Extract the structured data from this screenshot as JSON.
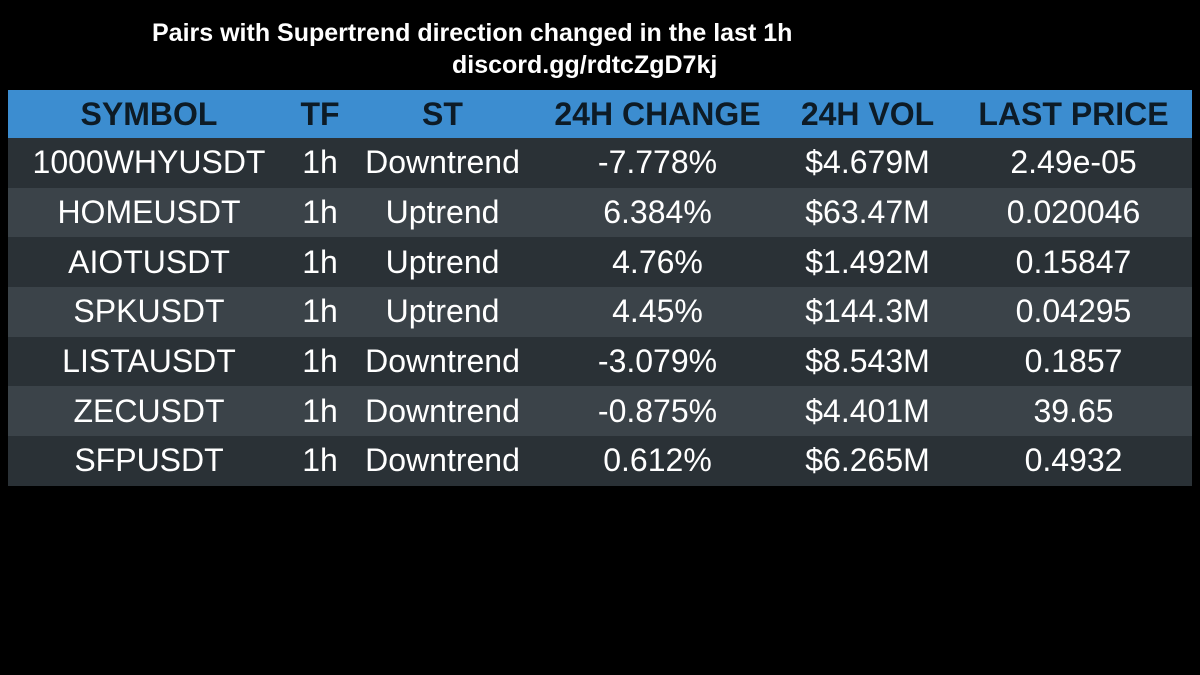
{
  "header": {
    "title": "Pairs with Supertrend direction changed in the last 1h",
    "subtitle": "discord.gg/rdtcZgD7kj"
  },
  "colors": {
    "background": "#000000",
    "header_bg": "#3c8dd0",
    "header_text": "#0d1b26",
    "row_dark": "#2a3136",
    "row_light": "#3b4349",
    "text": "#ffffff"
  },
  "table": {
    "columns": [
      "SYMBOL",
      "TF",
      "ST",
      "24H CHANGE",
      "24H VOL",
      "LAST PRICE"
    ],
    "rows": [
      [
        "1000WHYUSDT",
        "1h",
        "Downtrend",
        "-7.778%",
        "$4.679M",
        "2.49e-05"
      ],
      [
        "HOMEUSDT",
        "1h",
        "Uptrend",
        "6.384%",
        "$63.47M",
        "0.020046"
      ],
      [
        "AIOTUSDT",
        "1h",
        "Uptrend",
        "4.76%",
        "$1.492M",
        "0.15847"
      ],
      [
        "SPKUSDT",
        "1h",
        "Uptrend",
        "4.45%",
        "$144.3M",
        "0.04295"
      ],
      [
        "LISTAUSDT",
        "1h",
        "Downtrend",
        "-3.079%",
        "$8.543M",
        "0.1857"
      ],
      [
        "ZECUSDT",
        "1h",
        "Downtrend",
        "-0.875%",
        "$4.401M",
        "39.65"
      ],
      [
        "SFPUSDT",
        "1h",
        "Downtrend",
        "0.612%",
        "$6.265M",
        "0.4932"
      ]
    ]
  }
}
